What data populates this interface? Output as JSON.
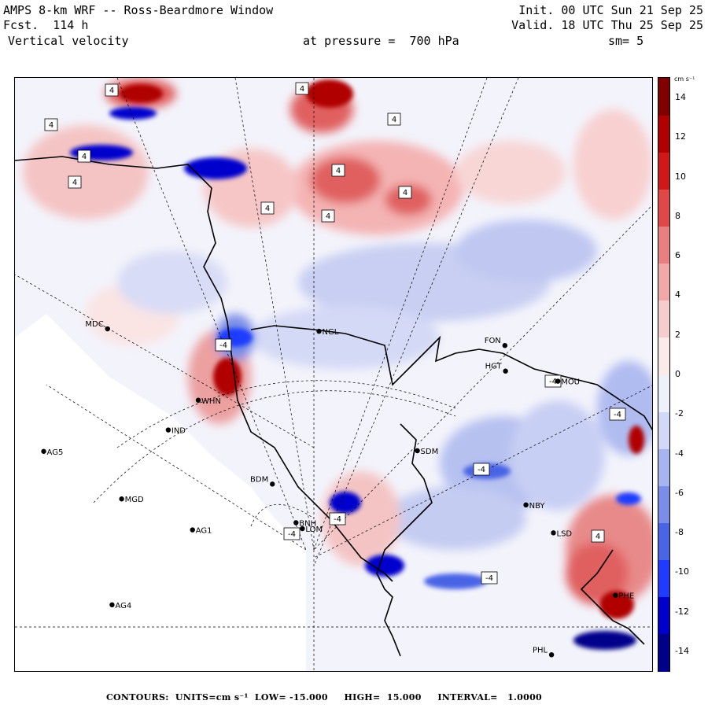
{
  "header": {
    "model_title": "AMPS 8-km WRF -- Ross-Beardmore Window",
    "forecast": "Fcst.  114 h",
    "field": "Vertical velocity",
    "level": "at pressure =  700 hPa",
    "init": "Init. 00 UTC Sun 21 Sep 25",
    "valid": "Valid. 18 UTC Thu 25 Sep 25",
    "smoothing": "sm= 5"
  },
  "colorbar": {
    "units_label": "cm s⁻¹",
    "ticks": [
      "14",
      "12",
      "10",
      "8",
      "6",
      "4",
      "2",
      "0",
      "-2",
      "-4",
      "-6",
      "-8",
      "-10",
      "-12",
      "-14"
    ],
    "range": [
      -15,
      15
    ],
    "colors": [
      "#00008b",
      "#0000cd",
      "#1e3cff",
      "#4a64e6",
      "#7a8ee8",
      "#a6b4f0",
      "#d2d9f8",
      "#eef0fb",
      "#fbeaea",
      "#f7cccc",
      "#f0a8a8",
      "#e88080",
      "#e04848",
      "#d01818",
      "#b00000",
      "#800000"
    ]
  },
  "stations": [
    {
      "code": "MDC",
      "lx": 0.145,
      "ly": 0.422
    },
    {
      "code": "NGL",
      "lx": 0.476,
      "ly": 0.426
    },
    {
      "code": "FON",
      "lx": 0.767,
      "ly": 0.45
    },
    {
      "code": "HGT",
      "lx": 0.768,
      "ly": 0.493
    },
    {
      "code": "MOU",
      "lx": 0.85,
      "ly": 0.51
    },
    {
      "code": "WHN",
      "lx": 0.287,
      "ly": 0.542
    },
    {
      "code": "IND",
      "lx": 0.24,
      "ly": 0.592
    },
    {
      "code": "AG5",
      "lx": 0.045,
      "ly": 0.628
    },
    {
      "code": "SDM",
      "lx": 0.63,
      "ly": 0.627
    },
    {
      "code": "BDM",
      "lx": 0.403,
      "ly": 0.683
    },
    {
      "code": "MGD",
      "lx": 0.167,
      "ly": 0.708
    },
    {
      "code": "NBY",
      "lx": 0.8,
      "ly": 0.718
    },
    {
      "code": "BNH",
      "lx": 0.44,
      "ly": 0.748
    },
    {
      "code": "LOM",
      "lx": 0.45,
      "ly": 0.758
    },
    {
      "code": "AG1",
      "lx": 0.278,
      "ly": 0.76
    },
    {
      "code": "LSD",
      "lx": 0.843,
      "ly": 0.765
    },
    {
      "code": "PHE",
      "lx": 0.94,
      "ly": 0.87
    },
    {
      "code": "AG4",
      "lx": 0.152,
      "ly": 0.886
    },
    {
      "code": "PHL",
      "lx": 0.84,
      "ly": 0.97
    }
  ],
  "contour_labels": [
    "4",
    "4",
    "4",
    "4",
    "4",
    "4",
    "4",
    "4",
    "4",
    "4",
    "4",
    "-4",
    "-4",
    "-4",
    "-4",
    "-4",
    "-4",
    "-4"
  ],
  "footer": {
    "contours": "CONTOURS:  UNITS=cm s⁻¹  LOW= -15.000     HIGH=  15.000     INTERVAL=   1.0000"
  }
}
